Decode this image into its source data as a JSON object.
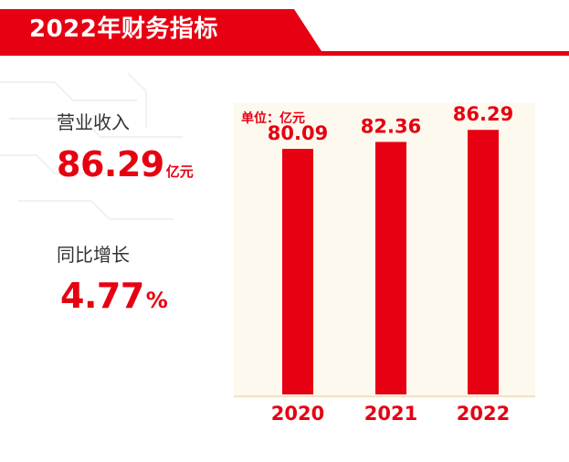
{
  "header": {
    "title": "2022年财务指标"
  },
  "metrics": [
    {
      "label": "营业收入",
      "value": "86.29",
      "unit": "亿元"
    },
    {
      "label": "同比增长",
      "value": "4.77",
      "unit": "%"
    }
  ],
  "chart_data": {
    "type": "bar",
    "unit_label": "单位：亿元",
    "categories": [
      "2020",
      "2021",
      "2022"
    ],
    "values": [
      80.09,
      82.36,
      86.29
    ],
    "data_labels": [
      "80.09",
      "82.36",
      "86.29"
    ],
    "ylim": [
      0,
      95
    ],
    "bar_color": "#e60012"
  },
  "colors": {
    "accent": "#e60012",
    "panel": "#fdf9ee"
  }
}
